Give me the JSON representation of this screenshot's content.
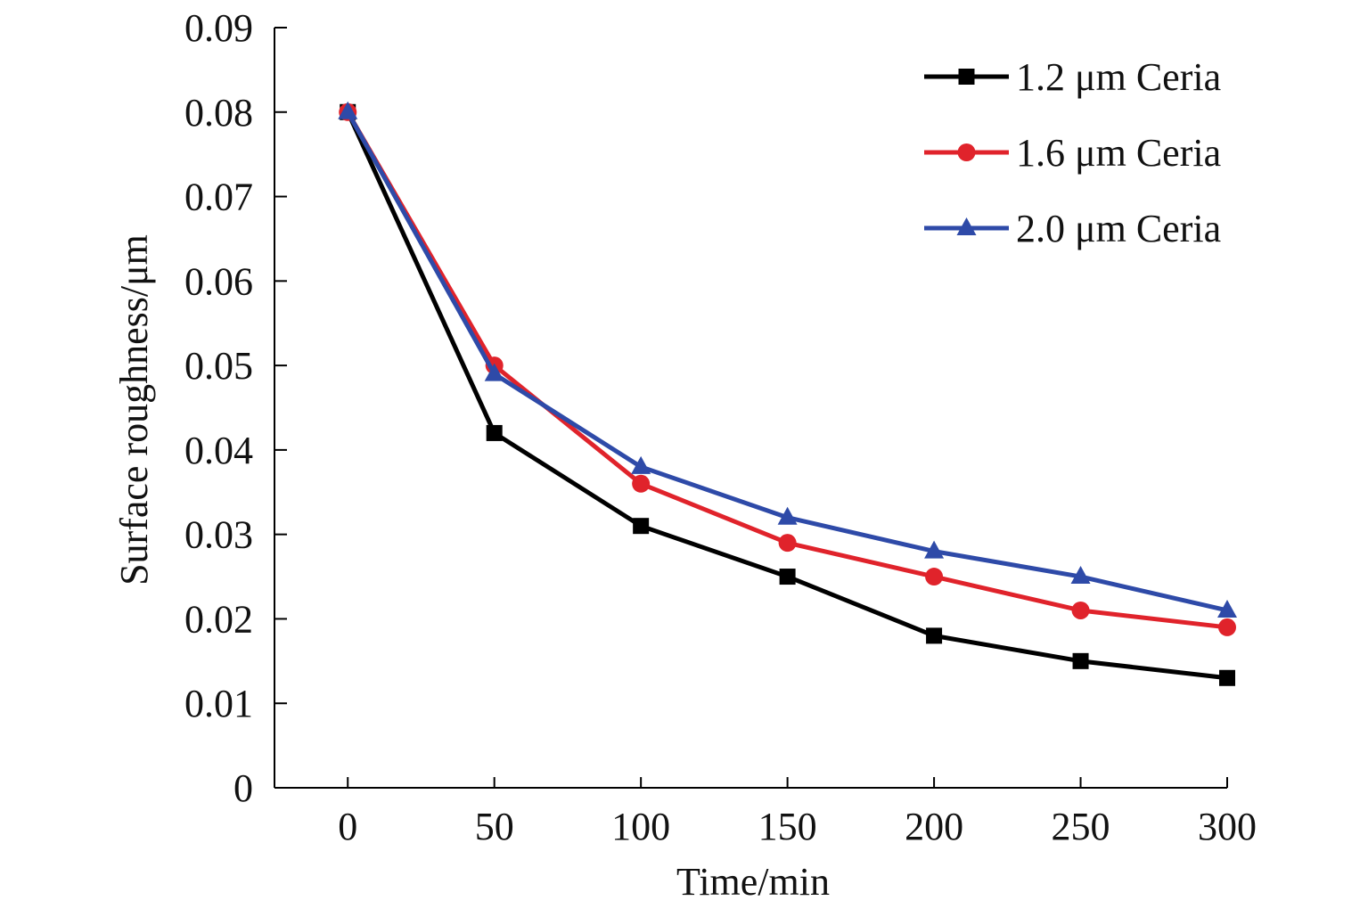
{
  "chart_data": {
    "type": "line",
    "title": "",
    "xlabel": "Time/min",
    "ylabel": "Surface roughness/μm",
    "x": [
      0,
      50,
      100,
      150,
      200,
      250,
      300
    ],
    "xlim": [
      -25,
      300
    ],
    "ylim": [
      0,
      0.09
    ],
    "xticks": [
      0,
      50,
      100,
      150,
      200,
      250,
      300
    ],
    "xtick_labels": [
      "0",
      "50",
      "100",
      "150",
      "200",
      "250",
      "300"
    ],
    "yticks": [
      0,
      0.01,
      0.02,
      0.03,
      0.04,
      0.05,
      0.06,
      0.07,
      0.08,
      0.09
    ],
    "ytick_labels": [
      "0",
      "0.01",
      "0.02",
      "0.03",
      "0.04",
      "0.05",
      "0.06",
      "0.07",
      "0.08",
      "0.09"
    ],
    "grid": false,
    "legend_position": "top-right",
    "series": [
      {
        "name": "1.2 μm Ceria",
        "color": "#000000",
        "marker": "square",
        "values": [
          0.08,
          0.042,
          0.031,
          0.025,
          0.018,
          0.015,
          0.013
        ]
      },
      {
        "name": "1.6 μm Ceria",
        "color": "#e0232b",
        "marker": "circle",
        "values": [
          0.08,
          0.05,
          0.036,
          0.029,
          0.025,
          0.021,
          0.019
        ]
      },
      {
        "name": "2.0 μm Ceria",
        "color": "#2e4aa8",
        "marker": "triangle",
        "values": [
          0.08,
          0.049,
          0.038,
          0.032,
          0.028,
          0.025,
          0.021
        ]
      }
    ]
  }
}
